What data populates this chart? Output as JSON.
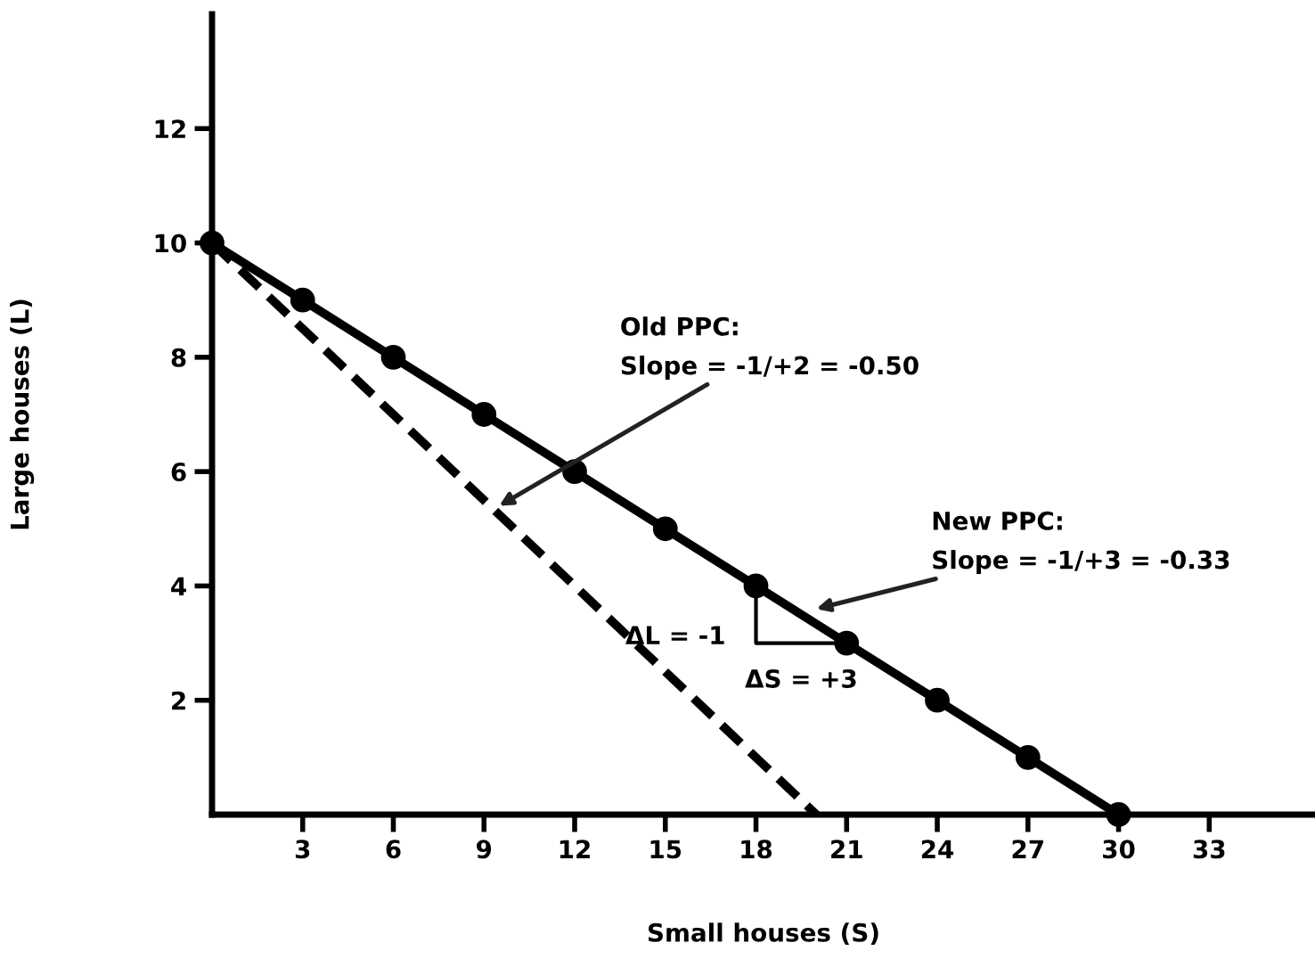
{
  "chart_data": {
    "type": "line",
    "xlabel": "Small houses (S)",
    "ylabel": "Large houses (L)",
    "xlim": [
      0,
      36.5
    ],
    "ylim": [
      0,
      14
    ],
    "xticks": [
      3,
      6,
      9,
      12,
      15,
      18,
      21,
      24,
      27,
      30,
      33
    ],
    "yticks": [
      2,
      4,
      6,
      8,
      10,
      12
    ],
    "grid": false,
    "legend": false,
    "series": [
      {
        "color": "#000000",
        "x": [
          0,
          20
        ],
        "values": [
          10,
          0
        ],
        "line_style": "dashed"
      },
      {
        "color": "#000000",
        "x": [
          0,
          3,
          6,
          9,
          12,
          15,
          18,
          21,
          24,
          27,
          30
        ],
        "values": [
          10,
          9,
          8,
          7,
          6,
          5,
          4,
          3,
          2,
          1,
          0
        ],
        "line_style": "solid",
        "marker": "circle"
      }
    ],
    "annotations": [
      {
        "text": "Old PPC:\nSlope = -1/+2 = -0.50",
        "x": 9.5,
        "y": 5.4
      },
      {
        "text": "New PPC:\nSlope = -1/+3 = -0.33",
        "x": 20,
        "y": 3.6
      },
      {
        "text": "ΔL = -1",
        "x": 18,
        "y": 4
      },
      {
        "text": "ΔS = +3",
        "x": 21,
        "y": 3
      }
    ]
  }
}
